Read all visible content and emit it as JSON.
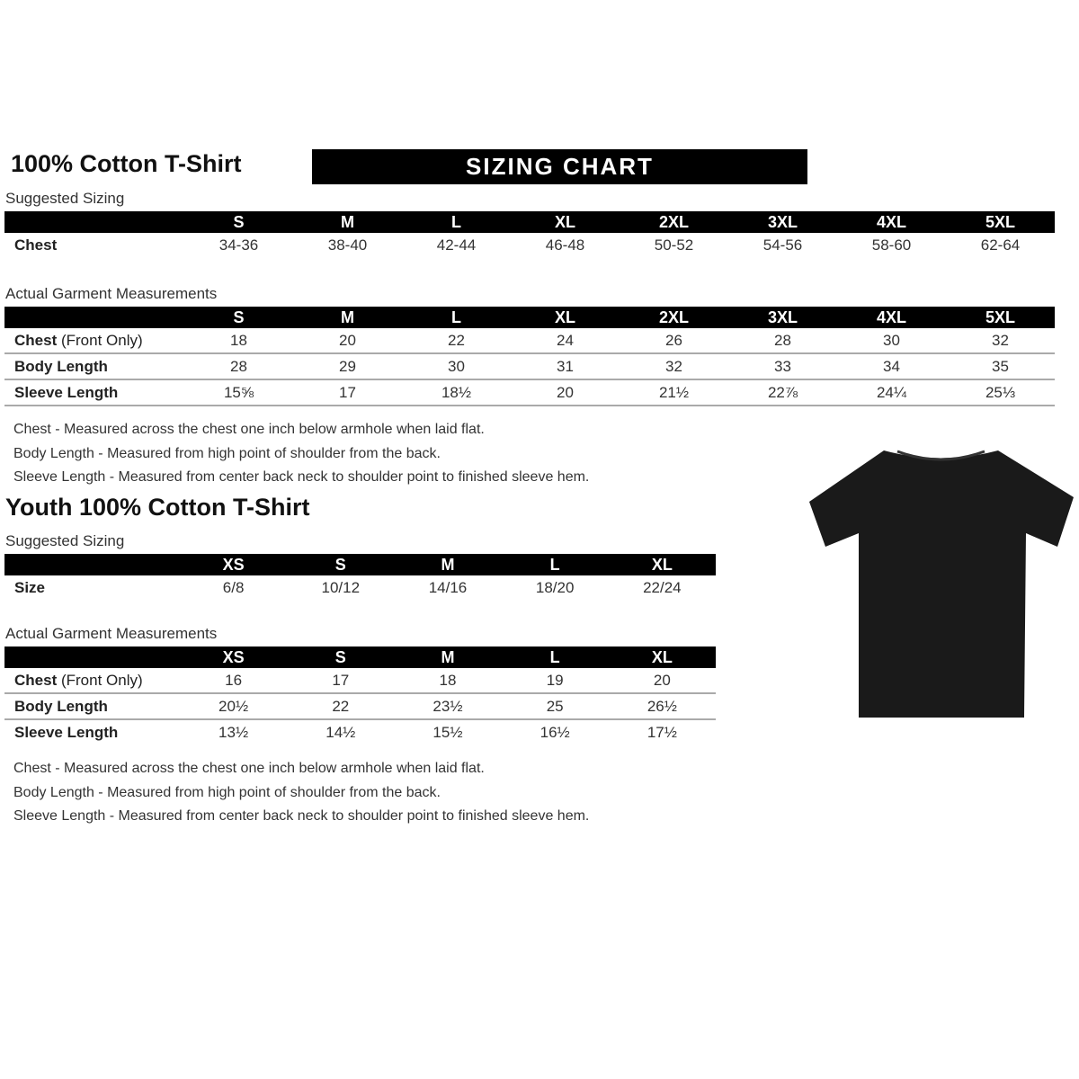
{
  "adult": {
    "title": "100% Cotton T-Shirt",
    "banner": "SIZING CHART",
    "suggested_label": "Suggested Sizing",
    "sizes": [
      "S",
      "M",
      "L",
      "XL",
      "2XL",
      "3XL",
      "4XL",
      "5XL"
    ],
    "suggested_rows": [
      {
        "label": "Chest",
        "values": [
          "34-36",
          "38-40",
          "42-44",
          "46-48",
          "50-52",
          "54-56",
          "58-60",
          "62-64"
        ]
      }
    ],
    "actual_label": "Actual Garment Measurements",
    "actual_rows": [
      {
        "label": "Chest",
        "label_suffix": " (Front Only)",
        "values": [
          "18",
          "20",
          "22",
          "24",
          "26",
          "28",
          "30",
          "32"
        ]
      },
      {
        "label": "Body Length",
        "label_suffix": "",
        "values": [
          "28",
          "29",
          "30",
          "31",
          "32",
          "33",
          "34",
          "35"
        ]
      },
      {
        "label": "Sleeve Length",
        "label_suffix": "",
        "values": [
          "15⅝",
          "17",
          "18½",
          "20",
          "21½",
          "22⅞",
          "24¼",
          "25⅓"
        ]
      }
    ],
    "notes": [
      "Chest - Measured across the chest one inch below armhole when laid flat.",
      "Body Length - Measured from high point of shoulder from the back.",
      "Sleeve Length - Measured from center back neck to shoulder point to finished sleeve hem."
    ]
  },
  "youth": {
    "title": "Youth 100% Cotton T-Shirt",
    "suggested_label": "Suggested Sizing",
    "sizes": [
      "XS",
      "S",
      "M",
      "L",
      "XL"
    ],
    "suggested_rows": [
      {
        "label": "Size",
        "values": [
          "6/8",
          "10/12",
          "14/16",
          "18/20",
          "22/24"
        ]
      }
    ],
    "actual_label": "Actual Garment Measurements",
    "actual_rows": [
      {
        "label": "Chest",
        "label_suffix": " (Front Only)",
        "values": [
          "16",
          "17",
          "18",
          "19",
          "20"
        ]
      },
      {
        "label": "Body Length",
        "label_suffix": "",
        "values": [
          "20½",
          "22",
          "23½",
          "25",
          "26½"
        ]
      },
      {
        "label": "Sleeve Length",
        "label_suffix": "",
        "values": [
          "13½",
          "14½",
          "15½",
          "16½",
          "17½"
        ]
      }
    ],
    "notes": [
      "Chest - Measured across the chest one inch below armhole when laid flat.",
      "Body Length - Measured from high point of shoulder from the back.",
      "Sleeve Length - Measured from center back neck to shoulder point to finished sleeve hem."
    ]
  },
  "image": {
    "icon": "black-tshirt",
    "color": "#1a1a1a"
  }
}
